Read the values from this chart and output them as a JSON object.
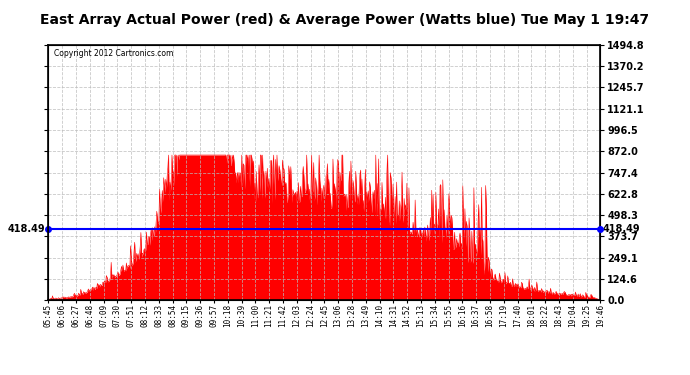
{
  "title": "East Array Actual Power (red) & Average Power (Watts blue) Tue May 1 19:47",
  "copyright": "Copyright 2012 Cartronics.com",
  "avg_power": 418.49,
  "y_max": 1494.8,
  "y_min": 0.0,
  "y_ticks": [
    0.0,
    124.6,
    249.1,
    373.7,
    498.3,
    622.8,
    747.4,
    872.0,
    996.5,
    1121.1,
    1245.7,
    1370.2,
    1494.8
  ],
  "fill_color": "#FF0000",
  "line_color": "#FF0000",
  "avg_line_color": "#0000FF",
  "background_color": "#FFFFFF",
  "grid_color": "#BBBBBB",
  "title_fontsize": 11,
  "x_labels": [
    "05:45",
    "06:06",
    "06:27",
    "06:48",
    "07:09",
    "07:30",
    "07:51",
    "08:12",
    "08:33",
    "08:54",
    "09:15",
    "09:36",
    "09:57",
    "10:18",
    "10:39",
    "11:00",
    "11:21",
    "11:42",
    "12:03",
    "12:24",
    "12:45",
    "13:06",
    "13:28",
    "13:49",
    "14:10",
    "14:31",
    "14:52",
    "15:13",
    "15:34",
    "15:55",
    "16:16",
    "16:37",
    "16:58",
    "17:19",
    "17:40",
    "18:01",
    "18:22",
    "18:43",
    "19:04",
    "19:25",
    "19:46"
  ]
}
